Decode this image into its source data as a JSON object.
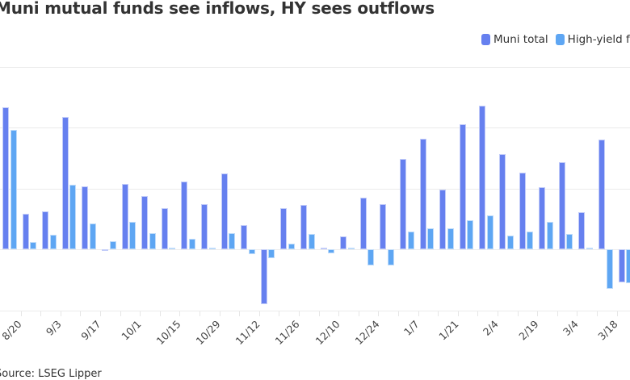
{
  "title": "Muni mutual funds see inflows, HY sees outflows",
  "source": "Source: LSEG Lipper",
  "colors": {
    "muni": "#6680ef",
    "hy": "#5ea6f3",
    "grid": "#ebebeb"
  },
  "legend": [
    {
      "label": "Muni total",
      "color": "#6680ef"
    },
    {
      "label": "High-yield funds",
      "color": "#5ea6f3"
    }
  ],
  "chart_data": {
    "type": "bar",
    "title": "Muni mutual funds see inflows, HY sees outflows",
    "xlabel": "",
    "ylabel": "",
    "y_units_note": "Y-axis tick labels are cropped off; values given in gridline units (1.0 = one gridline step)",
    "ylim": [
      -1.0,
      3.0
    ],
    "grid": true,
    "legend_position": "top-right",
    "tick_labels": [
      "8/20",
      "9/3",
      "9/17",
      "10/1",
      "10/15",
      "10/29",
      "11/12",
      "11/26",
      "12/10",
      "12/24",
      "1/7",
      "1/21",
      "2/4",
      "2/19",
      "3/4",
      "3/18"
    ],
    "categories": [
      "8/20",
      "8/27",
      "9/3",
      "9/10",
      "9/17",
      "9/24",
      "10/1",
      "10/8",
      "10/15",
      "10/22",
      "10/29",
      "11/5",
      "11/12",
      "11/19",
      "11/26",
      "12/3",
      "12/10",
      "12/17",
      "12/24",
      "12/31",
      "1/7",
      "1/14",
      "1/21",
      "1/28",
      "2/4",
      "2/11",
      "2/19",
      "2/25",
      "3/4",
      "3/11",
      "3/18",
      "3/25"
    ],
    "series": [
      {
        "name": "Muni total",
        "values": [
          2.33,
          0.58,
          0.62,
          2.17,
          1.03,
          -0.03,
          1.07,
          0.87,
          0.68,
          1.11,
          0.74,
          1.25,
          0.4,
          -0.9,
          0.68,
          0.73,
          0.01,
          0.21,
          0.85,
          0.74,
          1.48,
          1.81,
          0.98,
          2.05,
          2.36,
          1.56,
          1.26,
          1.02,
          1.43,
          0.61,
          1.8,
          -0.54
        ]
      },
      {
        "name": "High-yield funds",
        "values": [
          1.96,
          0.12,
          0.24,
          1.06,
          0.42,
          0.13,
          0.45,
          0.26,
          0.0,
          0.17,
          0.0,
          0.26,
          -0.08,
          -0.15,
          0.09,
          0.25,
          -0.07,
          0.0,
          -0.26,
          -0.26,
          0.29,
          0.34,
          0.34,
          0.48,
          0.56,
          0.23,
          0.29,
          0.45,
          0.25,
          0.01,
          -0.65,
          -0.56
        ]
      }
    ]
  }
}
